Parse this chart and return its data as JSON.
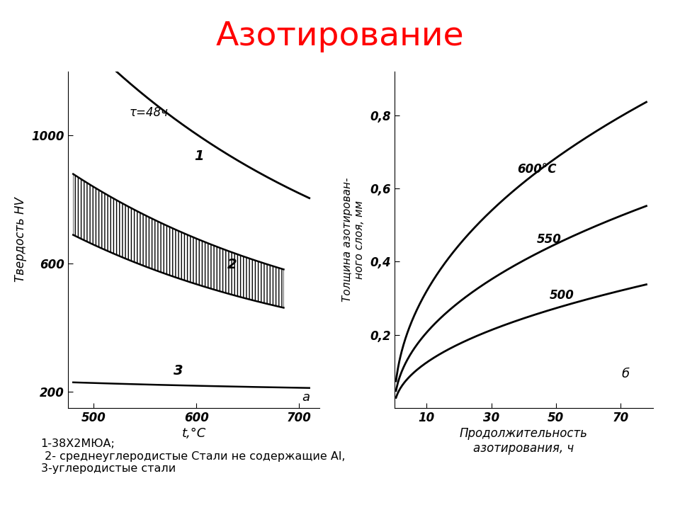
{
  "title": "Азотирование",
  "title_color": "#ff0000",
  "title_fontsize": 34,
  "footnote": "1-38Х2МЮА;\n 2- среднеуглеродистые Стали не содержащие Al,\n3-углеродистые стали",
  "left_chart": {
    "xlabel": "t,°C",
    "ylabel": "Твердость HV",
    "annotation": "τ=48ч",
    "xlim": [
      475,
      720
    ],
    "ylim": [
      150,
      1200
    ],
    "xticks": [
      500,
      600,
      700
    ],
    "yticks": [
      200,
      600,
      1000
    ],
    "label_a": "а"
  },
  "right_chart": {
    "xlabel": "Продолжительность\nазотирования, ч",
    "ylabel": "Толщина азотирован-\nного слоя, мм",
    "xlim": [
      0,
      80
    ],
    "ylim": [
      0,
      0.92
    ],
    "xticks": [
      10,
      30,
      50,
      70
    ],
    "yticks": [
      0.2,
      0.4,
      0.6,
      0.8
    ],
    "label_b": "б",
    "curve_labels": [
      "600°С",
      "550",
      "500"
    ]
  }
}
